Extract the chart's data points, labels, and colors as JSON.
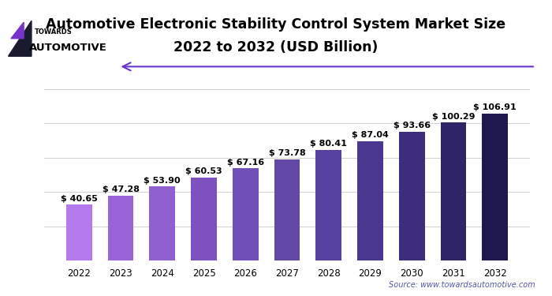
{
  "title_line1": "Automotive Electronic Stability Control System Market Size",
  "title_line2": "2022 to 2032 (USD Billion)",
  "years": [
    2022,
    2023,
    2024,
    2025,
    2026,
    2027,
    2028,
    2029,
    2030,
    2031,
    2032
  ],
  "values": [
    40.65,
    47.28,
    53.9,
    60.53,
    67.16,
    73.78,
    80.41,
    87.04,
    93.66,
    100.29,
    106.91
  ],
  "bar_colors": [
    "#b57bee",
    "#9b63d8",
    "#9060d0",
    "#7d52c0",
    "#7050b8",
    "#6348a8",
    "#5640a0",
    "#4a3890",
    "#3c2e7c",
    "#302468",
    "#1e1a50"
  ],
  "ylim": [
    0,
    125
  ],
  "yticks": [
    0,
    25,
    50,
    75,
    100,
    125
  ],
  "source_text": "Source: www.towardsautomotive.com",
  "background_color": "#ffffff",
  "grid_color": "#d0d0d0",
  "label_fontsize": 8.0,
  "title_fontsize": 12.5,
  "bar_width": 0.62,
  "arrow_color": "#6633cc",
  "logo_text_color": "#000000",
  "logo_automotive_color": "#000000"
}
